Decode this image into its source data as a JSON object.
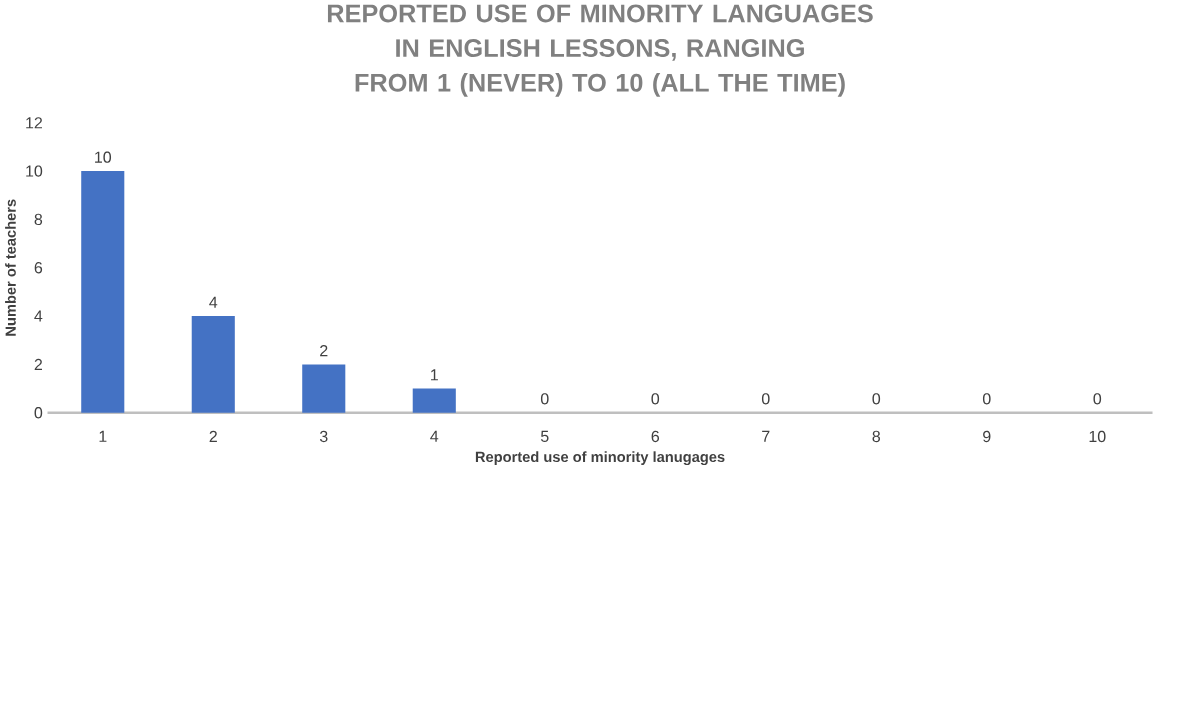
{
  "chart_data": {
    "type": "bar",
    "title": "REPORTED USE OF MINORITY LANGUAGES IN ENGLISH LESSONS, RANGING FROM 1 (NEVER) TO 10 (ALL THE TIME)",
    "xlabel": "Reported use of minority lanugages",
    "ylabel": "Number of teachers",
    "categories": [
      "1",
      "2",
      "3",
      "4",
      "5",
      "6",
      "7",
      "8",
      "9",
      "10"
    ],
    "values": [
      10,
      4,
      2,
      1,
      0,
      0,
      0,
      0,
      0,
      0
    ],
    "color": "#4472c4",
    "ylim": [
      0,
      12
    ],
    "yticks": [
      0,
      2,
      4,
      6,
      8,
      10,
      12
    ],
    "data_labels": true
  }
}
